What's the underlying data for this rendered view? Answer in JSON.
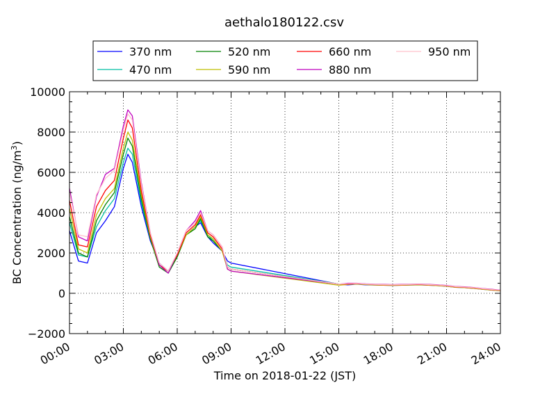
{
  "chart_data": {
    "type": "line",
    "title": "aethalo180122.csv",
    "xlabel": "Time on 2018-01-22 (JST)",
    "ylabel_main": "BC Concentration (ng/m",
    "ylabel_sup": "3",
    "ylabel_close": ")",
    "xlim": [
      "00:00",
      "24:00"
    ],
    "ylim": [
      -2000,
      10000
    ],
    "x_ticks": [
      "00:00",
      "03:00",
      "06:00",
      "09:00",
      "12:00",
      "15:00",
      "18:00",
      "21:00",
      "24:00"
    ],
    "y_ticks": [
      "−2000",
      "0",
      "2000",
      "4000",
      "6000",
      "8000",
      "10000"
    ],
    "y_tick_values": [
      -2000,
      0,
      2000,
      4000,
      6000,
      8000,
      10000
    ],
    "grid": true,
    "legend_position": "top-center",
    "x": [
      0.0,
      0.5,
      1.0,
      1.5,
      2.0,
      2.5,
      3.0,
      3.25,
      3.5,
      4.0,
      4.5,
      5.0,
      5.5,
      6.0,
      6.5,
      7.0,
      7.3,
      7.7,
      8.0,
      8.5,
      8.8,
      9.0,
      15.0,
      15.5,
      16.0,
      16.5,
      17.0,
      17.5,
      18.0,
      18.5,
      19.0,
      19.5,
      20.0,
      20.5,
      21.0,
      21.5,
      22.0,
      22.5,
      23.0,
      23.5,
      24.0
    ],
    "series": [
      {
        "name": "370 nm",
        "color": "#0000ff",
        "values": [
          3100,
          1600,
          1500,
          3000,
          3600,
          4300,
          6200,
          6900,
          6500,
          4300,
          2600,
          1500,
          1100,
          1900,
          2900,
          3300,
          3500,
          2800,
          2500,
          2100,
          1600,
          1500,
          450,
          420,
          450,
          420,
          410,
          400,
          390,
          400,
          410,
          420,
          400,
          380,
          350,
          300,
          280,
          250,
          200,
          160,
          120
        ]
      },
      {
        "name": "470 nm",
        "color": "#00bfa5",
        "values": [
          3500,
          1900,
          1800,
          3300,
          4100,
          4700,
          6500,
          7200,
          6900,
          4500,
          2700,
          1400,
          1100,
          1900,
          2900,
          3300,
          3600,
          2900,
          2600,
          2100,
          1400,
          1300,
          460,
          450,
          470,
          440,
          420,
          410,
          400,
          410,
          420,
          430,
          410,
          390,
          360,
          310,
          290,
          260,
          210,
          170,
          130
        ]
      },
      {
        "name": "520 nm",
        "color": "#008000",
        "values": [
          3800,
          2000,
          1800,
          3600,
          4400,
          5000,
          6900,
          7700,
          7300,
          4700,
          2700,
          1300,
          1000,
          1800,
          2900,
          3200,
          3700,
          2800,
          2600,
          2100,
          1300,
          1200,
          460,
          450,
          470,
          440,
          420,
          410,
          400,
          410,
          420,
          430,
          410,
          390,
          360,
          310,
          290,
          260,
          210,
          170,
          130
        ]
      },
      {
        "name": "590 nm",
        "color": "#bfbf00",
        "values": [
          4200,
          2200,
          2000,
          3900,
          4700,
          5200,
          7200,
          8000,
          7600,
          4900,
          2800,
          1400,
          1100,
          1900,
          2900,
          3300,
          3800,
          2900,
          2700,
          2100,
          1200,
          1100,
          400,
          440,
          460,
          430,
          410,
          400,
          390,
          400,
          410,
          420,
          400,
          380,
          350,
          300,
          280,
          250,
          200,
          160,
          120
        ]
      },
      {
        "name": "660 nm",
        "color": "#ff0000",
        "values": [
          4600,
          2400,
          2300,
          4300,
          5100,
          5600,
          7700,
          8600,
          8200,
          5100,
          2900,
          1400,
          1100,
          1900,
          3000,
          3400,
          3900,
          3000,
          2800,
          2200,
          1300,
          1200,
          450,
          460,
          480,
          450,
          430,
          420,
          410,
          420,
          430,
          440,
          420,
          400,
          370,
          320,
          300,
          270,
          220,
          180,
          140
        ]
      },
      {
        "name": "880 nm",
        "color": "#bf00bf",
        "values": [
          5200,
          2800,
          2600,
          4800,
          5900,
          6200,
          8300,
          9100,
          8800,
          5500,
          3000,
          1400,
          1000,
          2000,
          3100,
          3600,
          4100,
          3100,
          2900,
          2300,
          1200,
          1100,
          450,
          500,
          500,
          470,
          450,
          440,
          430,
          440,
          450,
          460,
          440,
          420,
          390,
          340,
          320,
          290,
          240,
          200,
          160
        ]
      },
      {
        "name": "950 nm",
        "color": "#ffc0cb",
        "values": [
          5000,
          2900,
          2800,
          4900,
          5700,
          6100,
          8100,
          8900,
          8600,
          5400,
          3000,
          1500,
          1100,
          2000,
          3100,
          3500,
          4000,
          3100,
          2900,
          2300,
          1300,
          1200,
          460,
          480,
          490,
          460,
          440,
          430,
          420,
          430,
          440,
          450,
          430,
          410,
          380,
          330,
          310,
          280,
          230,
          190,
          150
        ]
      }
    ]
  }
}
